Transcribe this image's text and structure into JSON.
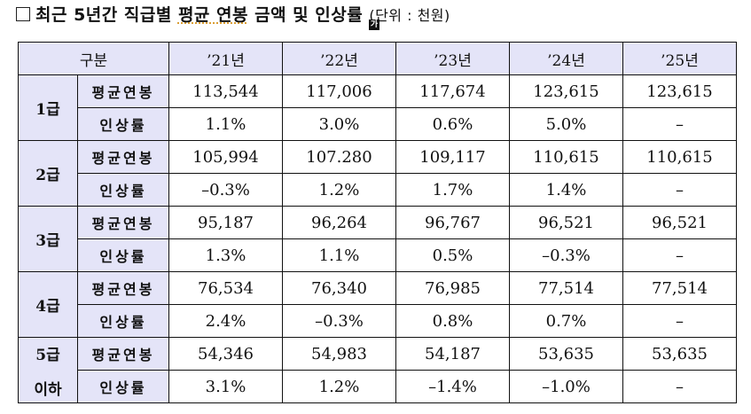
{
  "title": {
    "checkbox": "□",
    "text_before": "최근 5년간 직급별 ",
    "text_underlined": "평균 연봉",
    "text_after": " 금액 및 인상률 ",
    "unit": "(단위 : 천원)",
    "badge": "가"
  },
  "table": {
    "header": {
      "category": "구분",
      "years": [
        "’21년",
        "’22년",
        "’23년",
        "’24년",
        "’25년"
      ]
    },
    "metric_labels": {
      "salary": "평균연봉",
      "rate": "인상률"
    },
    "groups": [
      {
        "grade": "1급",
        "salary": [
          "113,544",
          "117,006",
          "117,674",
          "123,615",
          "123,615"
        ],
        "rate": [
          "1.1%",
          "3.0%",
          "0.6%",
          "5.0%",
          "–"
        ]
      },
      {
        "grade": "2급",
        "salary": [
          "105,994",
          "107.280",
          "109,117",
          "110,615",
          "110,615"
        ],
        "rate": [
          "–0.3%",
          "1.2%",
          "1.7%",
          "1.4%",
          "–"
        ]
      },
      {
        "grade": "3급",
        "salary": [
          "95,187",
          "96,264",
          "96,767",
          "96,521",
          "96,521"
        ],
        "rate": [
          "1.3%",
          "1.1%",
          "0.5%",
          "–0.3%",
          "–"
        ]
      },
      {
        "grade": "4급",
        "salary": [
          "76,534",
          "76,340",
          "76,985",
          "77,514",
          "77,514"
        ],
        "rate": [
          "2.4%",
          "–0.3%",
          "0.8%",
          "0.7%",
          "–"
        ]
      },
      {
        "grade": "5급",
        "grade_line2": "이하",
        "salary": [
          "54,346",
          "54,983",
          "54,187",
          "53,635",
          "53,635"
        ],
        "rate": [
          "3.1%",
          "1.2%",
          "–1.4%",
          "–1.0%",
          "–"
        ]
      }
    ]
  },
  "colors": {
    "header_bg": "#e4e4f8",
    "border": "#111111"
  }
}
